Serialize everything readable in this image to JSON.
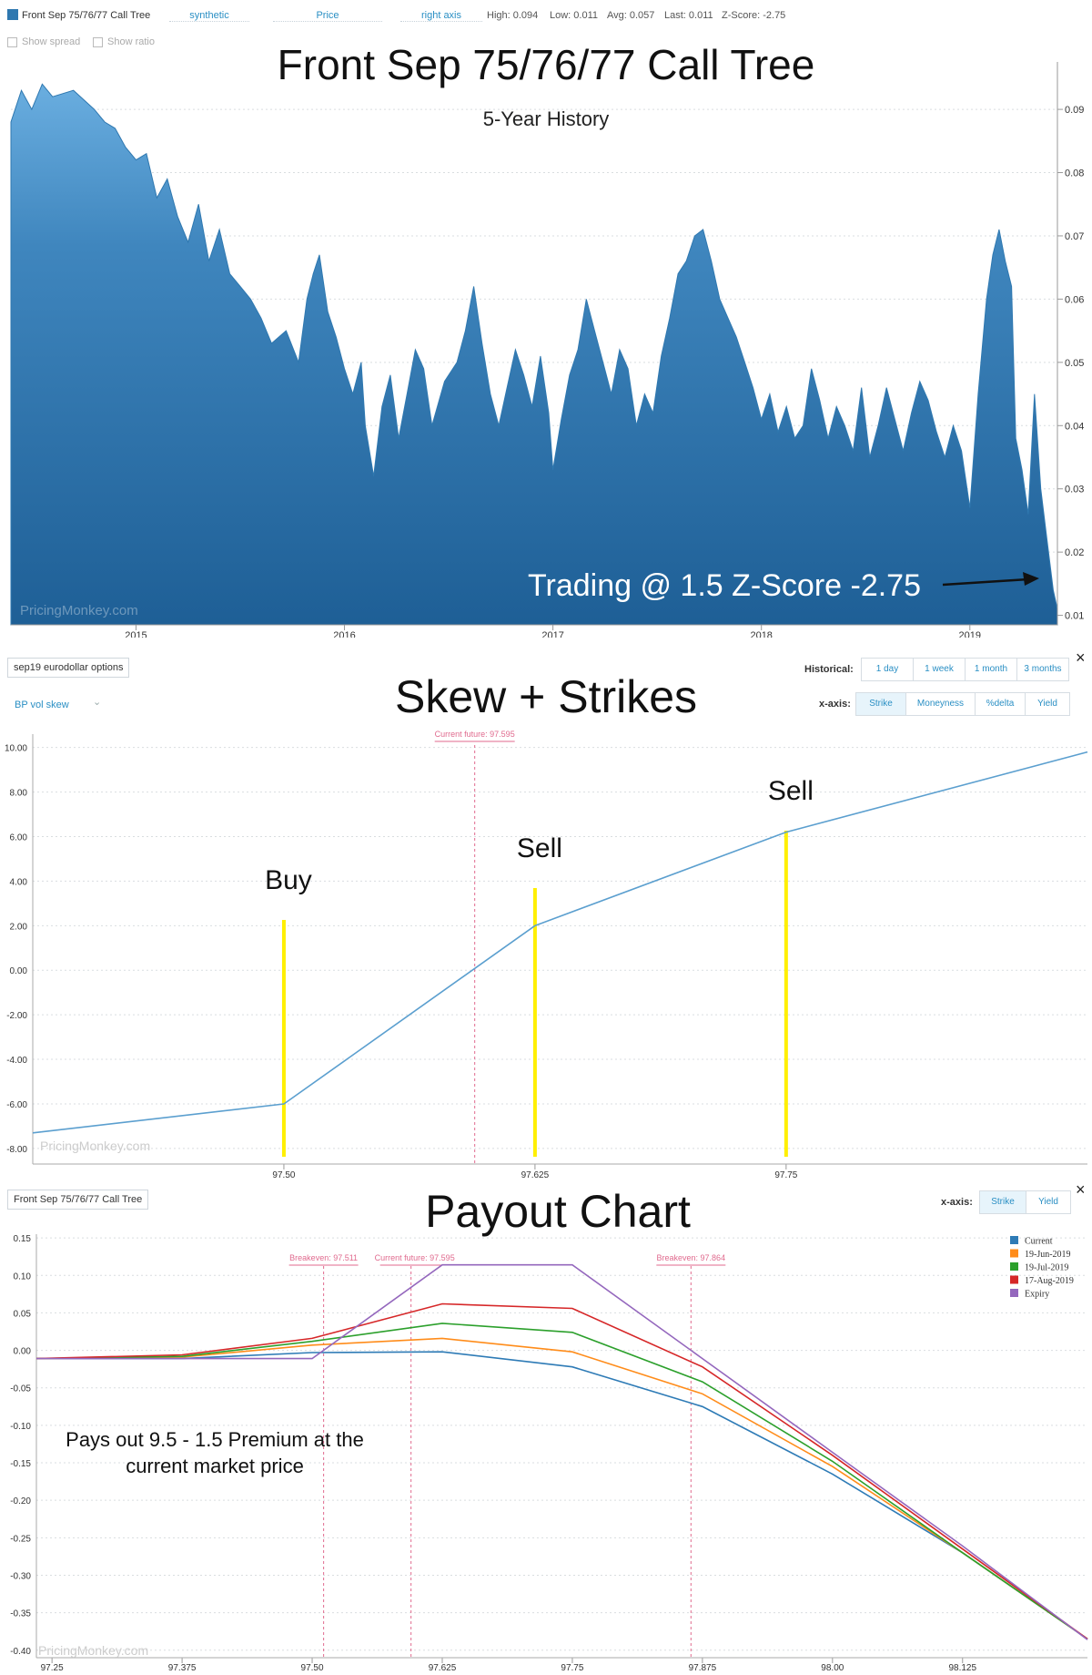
{
  "panel1": {
    "legend_name": "Front Sep 75/76/77 Call Tree",
    "dropdowns": [
      "synthetic",
      "Price",
      "right axis"
    ],
    "stats": {
      "high": "High: 0.094",
      "low": "Low: 0.011",
      "avg": "Avg: 0.057",
      "last": "Last: 0.011",
      "zscore": "Z-Score: -2.75"
    },
    "show_spread": "Show spread",
    "show_ratio": "Show ratio",
    "title": "Front Sep 75/76/77 Call Tree",
    "subtitle": "5-Year History",
    "annotation": "Trading @ 1.5 Z-Score -2.75",
    "watermark": "PricingMonkey.com"
  },
  "panel2": {
    "selector": "sep19 eurodollar options",
    "mode": "BP vol skew",
    "title": "Skew + Strikes",
    "historical_label": "Historical:",
    "historical_buttons": [
      "1 day",
      "1 week",
      "1 month",
      "3 months"
    ],
    "xaxis_label": "x-axis:",
    "xaxis_buttons": [
      "Strike",
      "Moneyness",
      "%delta",
      "Yield"
    ],
    "close": "×",
    "future_label": "Current future: 97.595",
    "strike_labels": [
      "Buy",
      "Sell",
      "Sell"
    ],
    "watermark": "PricingMonkey.com"
  },
  "panel3": {
    "selector": "Front Sep 75/76/77 Call Tree",
    "title": "Payout Chart",
    "xaxis_label": "x-axis:",
    "xaxis_buttons": [
      "Strike",
      "Yield"
    ],
    "close": "×",
    "markers": [
      "Breakeven: 97.511",
      "Current future: 97.595",
      "Breakeven: 97.864"
    ],
    "annotation_line1": "Pays out 9.5 - 1.5 Premium at the",
    "annotation_line2": "current market price",
    "watermark": "PricingMonkey.com"
  },
  "chart_data": [
    {
      "type": "area",
      "title": "Front Sep 75/76/77 Call Tree",
      "subtitle": "5-Year History",
      "x_ticks": [
        "2015",
        "2016",
        "2017",
        "2018",
        "2019"
      ],
      "y_ticks": [
        "0.01",
        "0.02",
        "0.03",
        "0.04",
        "0.05",
        "0.06",
        "0.07",
        "0.08",
        "0.09"
      ],
      "ylim": [
        0.0085,
        0.0975
      ],
      "xlim": [
        2014.4,
        2019.42
      ],
      "axis_side": "right",
      "color": "#2f78b0",
      "series": [
        {
          "name": "Front Sep 75/76/77 Call Tree",
          "points": [
            [
              2014.4,
              0.088
            ],
            [
              2014.45,
              0.093
            ],
            [
              2014.5,
              0.09
            ],
            [
              2014.55,
              0.094
            ],
            [
              2014.6,
              0.092
            ],
            [
              2014.7,
              0.093
            ],
            [
              2014.8,
              0.09
            ],
            [
              2014.85,
              0.088
            ],
            [
              2014.9,
              0.087
            ],
            [
              2014.95,
              0.084
            ],
            [
              2015.0,
              0.082
            ],
            [
              2015.05,
              0.083
            ],
            [
              2015.1,
              0.076
            ],
            [
              2015.15,
              0.079
            ],
            [
              2015.2,
              0.073
            ],
            [
              2015.25,
              0.069
            ],
            [
              2015.3,
              0.075
            ],
            [
              2015.35,
              0.066
            ],
            [
              2015.4,
              0.071
            ],
            [
              2015.45,
              0.064
            ],
            [
              2015.5,
              0.062
            ],
            [
              2015.55,
              0.06
            ],
            [
              2015.6,
              0.057
            ],
            [
              2015.65,
              0.053
            ],
            [
              2015.72,
              0.055
            ],
            [
              2015.78,
              0.05
            ],
            [
              2015.82,
              0.06
            ],
            [
              2015.85,
              0.064
            ],
            [
              2015.88,
              0.067
            ],
            [
              2015.92,
              0.058
            ],
            [
              2015.96,
              0.054
            ],
            [
              2016.0,
              0.049
            ],
            [
              2016.04,
              0.045
            ],
            [
              2016.08,
              0.05
            ],
            [
              2016.1,
              0.04
            ],
            [
              2016.14,
              0.032
            ],
            [
              2016.18,
              0.043
            ],
            [
              2016.22,
              0.048
            ],
            [
              2016.26,
              0.038
            ],
            [
              2016.3,
              0.045
            ],
            [
              2016.34,
              0.052
            ],
            [
              2016.38,
              0.049
            ],
            [
              2016.42,
              0.04
            ],
            [
              2016.48,
              0.047
            ],
            [
              2016.54,
              0.05
            ],
            [
              2016.58,
              0.055
            ],
            [
              2016.62,
              0.062
            ],
            [
              2016.66,
              0.053
            ],
            [
              2016.7,
              0.045
            ],
            [
              2016.74,
              0.04
            ],
            [
              2016.78,
              0.046
            ],
            [
              2016.82,
              0.052
            ],
            [
              2016.86,
              0.048
            ],
            [
              2016.9,
              0.043
            ],
            [
              2016.94,
              0.051
            ],
            [
              2016.98,
              0.042
            ],
            [
              2017.0,
              0.033
            ],
            [
              2017.04,
              0.041
            ],
            [
              2017.08,
              0.048
            ],
            [
              2017.12,
              0.052
            ],
            [
              2017.16,
              0.06
            ],
            [
              2017.2,
              0.055
            ],
            [
              2017.24,
              0.05
            ],
            [
              2017.28,
              0.045
            ],
            [
              2017.32,
              0.052
            ],
            [
              2017.36,
              0.049
            ],
            [
              2017.4,
              0.04
            ],
            [
              2017.44,
              0.045
            ],
            [
              2017.48,
              0.042
            ],
            [
              2017.52,
              0.051
            ],
            [
              2017.56,
              0.057
            ],
            [
              2017.6,
              0.064
            ],
            [
              2017.64,
              0.066
            ],
            [
              2017.68,
              0.07
            ],
            [
              2017.72,
              0.071
            ],
            [
              2017.76,
              0.066
            ],
            [
              2017.8,
              0.06
            ],
            [
              2017.84,
              0.057
            ],
            [
              2017.88,
              0.054
            ],
            [
              2017.92,
              0.05
            ],
            [
              2017.96,
              0.046
            ],
            [
              2018.0,
              0.041
            ],
            [
              2018.04,
              0.045
            ],
            [
              2018.08,
              0.039
            ],
            [
              2018.12,
              0.043
            ],
            [
              2018.16,
              0.038
            ],
            [
              2018.2,
              0.04
            ],
            [
              2018.24,
              0.049
            ],
            [
              2018.28,
              0.044
            ],
            [
              2018.32,
              0.038
            ],
            [
              2018.36,
              0.043
            ],
            [
              2018.4,
              0.04
            ],
            [
              2018.44,
              0.036
            ],
            [
              2018.48,
              0.046
            ],
            [
              2018.52,
              0.035
            ],
            [
              2018.56,
              0.04
            ],
            [
              2018.6,
              0.046
            ],
            [
              2018.64,
              0.041
            ],
            [
              2018.68,
              0.036
            ],
            [
              2018.72,
              0.042
            ],
            [
              2018.76,
              0.047
            ],
            [
              2018.8,
              0.044
            ],
            [
              2018.84,
              0.039
            ],
            [
              2018.88,
              0.035
            ],
            [
              2018.92,
              0.04
            ],
            [
              2018.96,
              0.036
            ],
            [
              2019.0,
              0.027
            ],
            [
              2019.04,
              0.045
            ],
            [
              2019.08,
              0.06
            ],
            [
              2019.11,
              0.067
            ],
            [
              2019.14,
              0.071
            ],
            [
              2019.17,
              0.066
            ],
            [
              2019.2,
              0.062
            ],
            [
              2019.22,
              0.038
            ],
            [
              2019.25,
              0.033
            ],
            [
              2019.28,
              0.026
            ],
            [
              2019.31,
              0.045
            ],
            [
              2019.34,
              0.03
            ],
            [
              2019.37,
              0.022
            ],
            [
              2019.4,
              0.014
            ],
            [
              2019.42,
              0.011
            ]
          ]
        }
      ]
    },
    {
      "type": "line",
      "title": "Skew + Strikes",
      "x_ticks": [
        "97.50",
        "97.625",
        "97.75"
      ],
      "y_ticks": [
        "10.00",
        "8.00",
        "6.00",
        "4.00",
        "2.00",
        "0.00",
        "-2.00",
        "-4.00",
        "-6.00",
        "-8.00"
      ],
      "xlim": [
        97.375,
        97.9
      ],
      "ylim": [
        -8.7,
        10.6
      ],
      "current_future": 97.595,
      "strikes": [
        97.5,
        97.625,
        97.75
      ],
      "series": [
        {
          "name": "BP vol skew",
          "color": "#5b9fcf",
          "points": [
            [
              97.375,
              -7.3
            ],
            [
              97.5,
              -6.0
            ],
            [
              97.625,
              2.0
            ],
            [
              97.75,
              6.2
            ],
            [
              97.9,
              9.8
            ]
          ]
        }
      ]
    },
    {
      "type": "line",
      "title": "Payout Chart",
      "x_ticks": [
        "97.25",
        "97.375",
        "97.50",
        "97.625",
        "97.75",
        "97.875",
        "98.00",
        "98.125"
      ],
      "y_ticks": [
        "0.15",
        "0.10",
        "0.05",
        "0.00",
        "-0.05",
        "-0.10",
        "-0.15",
        "-0.20",
        "-0.25",
        "-0.30",
        "-0.35",
        "-0.40"
      ],
      "xlim": [
        97.235,
        98.245
      ],
      "ylim": [
        -0.41,
        0.155
      ],
      "markers": [
        97.511,
        97.595,
        97.864
      ],
      "legend_position": "top-right",
      "series": [
        {
          "name": "Current",
          "color": "#2e7bb6",
          "points": [
            [
              97.235,
              -0.011
            ],
            [
              97.375,
              -0.011
            ],
            [
              97.5,
              -0.003
            ],
            [
              97.625,
              -0.002
            ],
            [
              97.75,
              -0.022
            ],
            [
              97.875,
              -0.075
            ],
            [
              98.0,
              -0.165
            ],
            [
              98.125,
              -0.27
            ],
            [
              98.245,
              -0.385
            ]
          ]
        },
        {
          "name": "19-Jun-2019",
          "color": "#ff8c1a",
          "points": [
            [
              97.235,
              -0.011
            ],
            [
              97.375,
              -0.009
            ],
            [
              97.5,
              0.007
            ],
            [
              97.625,
              0.016
            ],
            [
              97.75,
              -0.002
            ],
            [
              97.875,
              -0.058
            ],
            [
              98.0,
              -0.155
            ],
            [
              98.125,
              -0.27
            ],
            [
              98.245,
              -0.385
            ]
          ]
        },
        {
          "name": "19-Jul-2019",
          "color": "#2ca02c",
          "points": [
            [
              97.235,
              -0.011
            ],
            [
              97.375,
              -0.008
            ],
            [
              97.5,
              0.012
            ],
            [
              97.625,
              0.036
            ],
            [
              97.75,
              0.024
            ],
            [
              97.875,
              -0.042
            ],
            [
              98.0,
              -0.148
            ],
            [
              98.125,
              -0.27
            ],
            [
              98.245,
              -0.385
            ]
          ]
        },
        {
          "name": "17-Aug-2019",
          "color": "#d62728",
          "points": [
            [
              97.235,
              -0.011
            ],
            [
              97.375,
              -0.006
            ],
            [
              97.5,
              0.016
            ],
            [
              97.625,
              0.062
            ],
            [
              97.75,
              0.056
            ],
            [
              97.875,
              -0.022
            ],
            [
              98.0,
              -0.14
            ],
            [
              98.125,
              -0.265
            ],
            [
              98.245,
              -0.385
            ]
          ]
        },
        {
          "name": "Expiry",
          "color": "#9467bd",
          "points": [
            [
              97.235,
              -0.011
            ],
            [
              97.375,
              -0.011
            ],
            [
              97.5,
              -0.011
            ],
            [
              97.625,
              0.114
            ],
            [
              97.75,
              0.114
            ],
            [
              97.875,
              -0.011
            ],
            [
              98.0,
              -0.136
            ],
            [
              98.125,
              -0.261
            ],
            [
              98.245,
              -0.386
            ]
          ]
        }
      ]
    }
  ]
}
